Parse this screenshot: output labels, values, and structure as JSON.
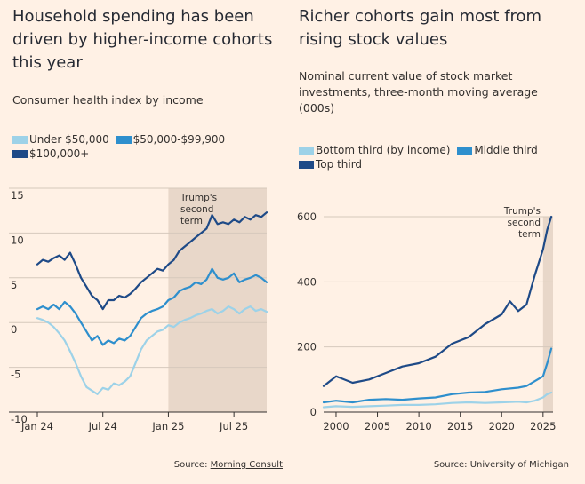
{
  "colors": {
    "background": "#fff1e5",
    "grid": "#d6c9bc",
    "shade": "#e8d7c9",
    "light_blue": "#9dd2e8",
    "mid_blue": "#2e8fcd",
    "dark_blue": "#1e4a87"
  },
  "chart_data": [
    {
      "type": "line",
      "title": "Household spending has been driven by higher-income cohorts this year",
      "subtitle": "Consumer health index by income",
      "source_prefix": "Source: ",
      "source_name": "Morning Consult",
      "ylim": [
        -10,
        15
      ],
      "y_ticks": [
        15,
        10,
        5,
        0,
        -5,
        -10
      ],
      "y_tick_labels": [
        "15",
        "10",
        "5",
        "0",
        "-5",
        "-10"
      ],
      "x_range": [
        0,
        21
      ],
      "x_ticks": [
        0,
        6,
        12,
        18
      ],
      "x_tick_labels": [
        "Jan 24",
        "Jul 24",
        "Jan 25",
        "Jul 25"
      ],
      "x_unit": "months since Jan 2024",
      "shade_from": 12,
      "annotation": [
        "Trump's",
        "second",
        "term"
      ],
      "series": [
        {
          "name": "Under $50,000",
          "color": "#9dd2e8",
          "x": [
            0,
            0.5,
            1,
            1.5,
            2,
            2.5,
            3,
            3.5,
            4,
            4.5,
            5,
            5.5,
            6,
            6.5,
            7,
            7.5,
            8,
            8.5,
            9,
            9.5,
            10,
            10.5,
            11,
            11.5,
            12,
            12.5,
            13,
            13.5,
            14,
            14.5,
            15,
            15.5,
            16,
            16.5,
            17,
            17.5,
            18,
            18.5,
            19,
            19.5,
            20,
            20.5,
            21
          ],
          "y": [
            0.5,
            0.3,
            0,
            -0.5,
            -1.2,
            -2.0,
            -3.2,
            -4.5,
            -6.0,
            -7.2,
            -7.6,
            -8.0,
            -7.3,
            -7.5,
            -6.8,
            -7.0,
            -6.6,
            -6.0,
            -4.5,
            -3.0,
            -2.0,
            -1.5,
            -1.0,
            -0.8,
            -0.3,
            -0.5,
            0,
            0.3,
            0.5,
            0.8,
            1.0,
            1.3,
            1.5,
            1.0,
            1.3,
            1.8,
            1.5,
            1.0,
            1.5,
            1.8,
            1.3,
            1.5,
            1.2
          ]
        },
        {
          "name": "$50,000-$99,900",
          "color": "#2e8fcd",
          "x": [
            0,
            0.5,
            1,
            1.5,
            2,
            2.5,
            3,
            3.5,
            4,
            4.5,
            5,
            5.5,
            6,
            6.5,
            7,
            7.5,
            8,
            8.5,
            9,
            9.5,
            10,
            10.5,
            11,
            11.5,
            12,
            12.5,
            13,
            13.5,
            14,
            14.5,
            15,
            15.5,
            16,
            16.5,
            17,
            17.5,
            18,
            18.5,
            19,
            19.5,
            20,
            20.5,
            21
          ],
          "y": [
            1.5,
            1.8,
            1.5,
            2.0,
            1.5,
            2.3,
            1.8,
            1.0,
            0,
            -1.0,
            -2.0,
            -1.5,
            -2.5,
            -2.0,
            -2.3,
            -1.8,
            -2.0,
            -1.5,
            -0.5,
            0.5,
            1.0,
            1.3,
            1.5,
            1.8,
            2.5,
            2.8,
            3.5,
            3.8,
            4.0,
            4.5,
            4.3,
            4.8,
            6.0,
            5.0,
            4.8,
            5.0,
            5.5,
            4.5,
            4.8,
            5.0,
            5.3,
            5.0,
            4.5
          ]
        },
        {
          "name": "$100,000+",
          "color": "#1e4a87",
          "x": [
            0,
            0.5,
            1,
            1.5,
            2,
            2.5,
            3,
            3.5,
            4,
            4.5,
            5,
            5.5,
            6,
            6.5,
            7,
            7.5,
            8,
            8.5,
            9,
            9.5,
            10,
            10.5,
            11,
            11.5,
            12,
            12.5,
            13,
            13.5,
            14,
            14.5,
            15,
            15.5,
            16,
            16.5,
            17,
            17.5,
            18,
            18.5,
            19,
            19.5,
            20,
            20.5,
            21
          ],
          "y": [
            6.5,
            7.0,
            6.8,
            7.2,
            7.5,
            7.0,
            7.8,
            6.5,
            5.0,
            4.0,
            3.0,
            2.5,
            1.5,
            2.5,
            2.5,
            3.0,
            2.8,
            3.2,
            3.8,
            4.5,
            5.0,
            5.5,
            6.0,
            5.8,
            6.5,
            7.0,
            8.0,
            8.5,
            9.0,
            9.5,
            10.0,
            10.5,
            12.0,
            11.0,
            11.2,
            11.0,
            11.5,
            11.2,
            11.8,
            11.5,
            12.0,
            11.8,
            12.3
          ]
        }
      ]
    },
    {
      "type": "line",
      "title": "Richer cohorts gain most from rising stock values",
      "subtitle": "Nominal current value of stock market investments, three-month moving average (000s)",
      "source_prefix": "Source: ",
      "source_name": "University of Michigan",
      "ylim": [
        0,
        600
      ],
      "y_ticks": [
        600,
        400,
        200,
        0
      ],
      "y_tick_labels": [
        "600",
        "400",
        "200",
        "0"
      ],
      "x_range": [
        1998.5,
        2026.2
      ],
      "x_ticks": [
        2000,
        2005,
        2010,
        2015,
        2020,
        2025
      ],
      "x_tick_labels": [
        "2000",
        "2005",
        "2010",
        "2015",
        "2020",
        "2025"
      ],
      "shade_from": 2025,
      "annotation": [
        "Trump's",
        "second",
        "term"
      ],
      "series": [
        {
          "name": "Bottom third (by income)",
          "color": "#9dd2e8",
          "x": [
            1998.5,
            2000,
            2002,
            2004,
            2006,
            2008,
            2010,
            2012,
            2014,
            2016,
            2018,
            2020,
            2022,
            2023,
            2024,
            2025,
            2025.5,
            2026
          ],
          "y": [
            15,
            18,
            16,
            18,
            20,
            22,
            22,
            24,
            28,
            30,
            28,
            30,
            32,
            30,
            35,
            45,
            55,
            60
          ]
        },
        {
          "name": "Middle third",
          "color": "#2e8fcd",
          "x": [
            1998.5,
            2000,
            2002,
            2004,
            2006,
            2008,
            2010,
            2012,
            2014,
            2016,
            2018,
            2020,
            2022,
            2023,
            2024,
            2025,
            2025.5,
            2026
          ],
          "y": [
            30,
            35,
            30,
            38,
            40,
            38,
            42,
            45,
            55,
            60,
            62,
            70,
            75,
            80,
            95,
            110,
            150,
            195
          ]
        },
        {
          "name": "Top third",
          "color": "#1e4a87",
          "x": [
            1998.5,
            2000,
            2002,
            2004,
            2006,
            2008,
            2010,
            2012,
            2014,
            2016,
            2018,
            2020,
            2021,
            2022,
            2023,
            2024,
            2025,
            2025.5,
            2026
          ],
          "y": [
            80,
            110,
            90,
            100,
            120,
            140,
            150,
            170,
            210,
            230,
            270,
            300,
            340,
            310,
            330,
            420,
            500,
            560,
            600
          ]
        }
      ]
    }
  ]
}
